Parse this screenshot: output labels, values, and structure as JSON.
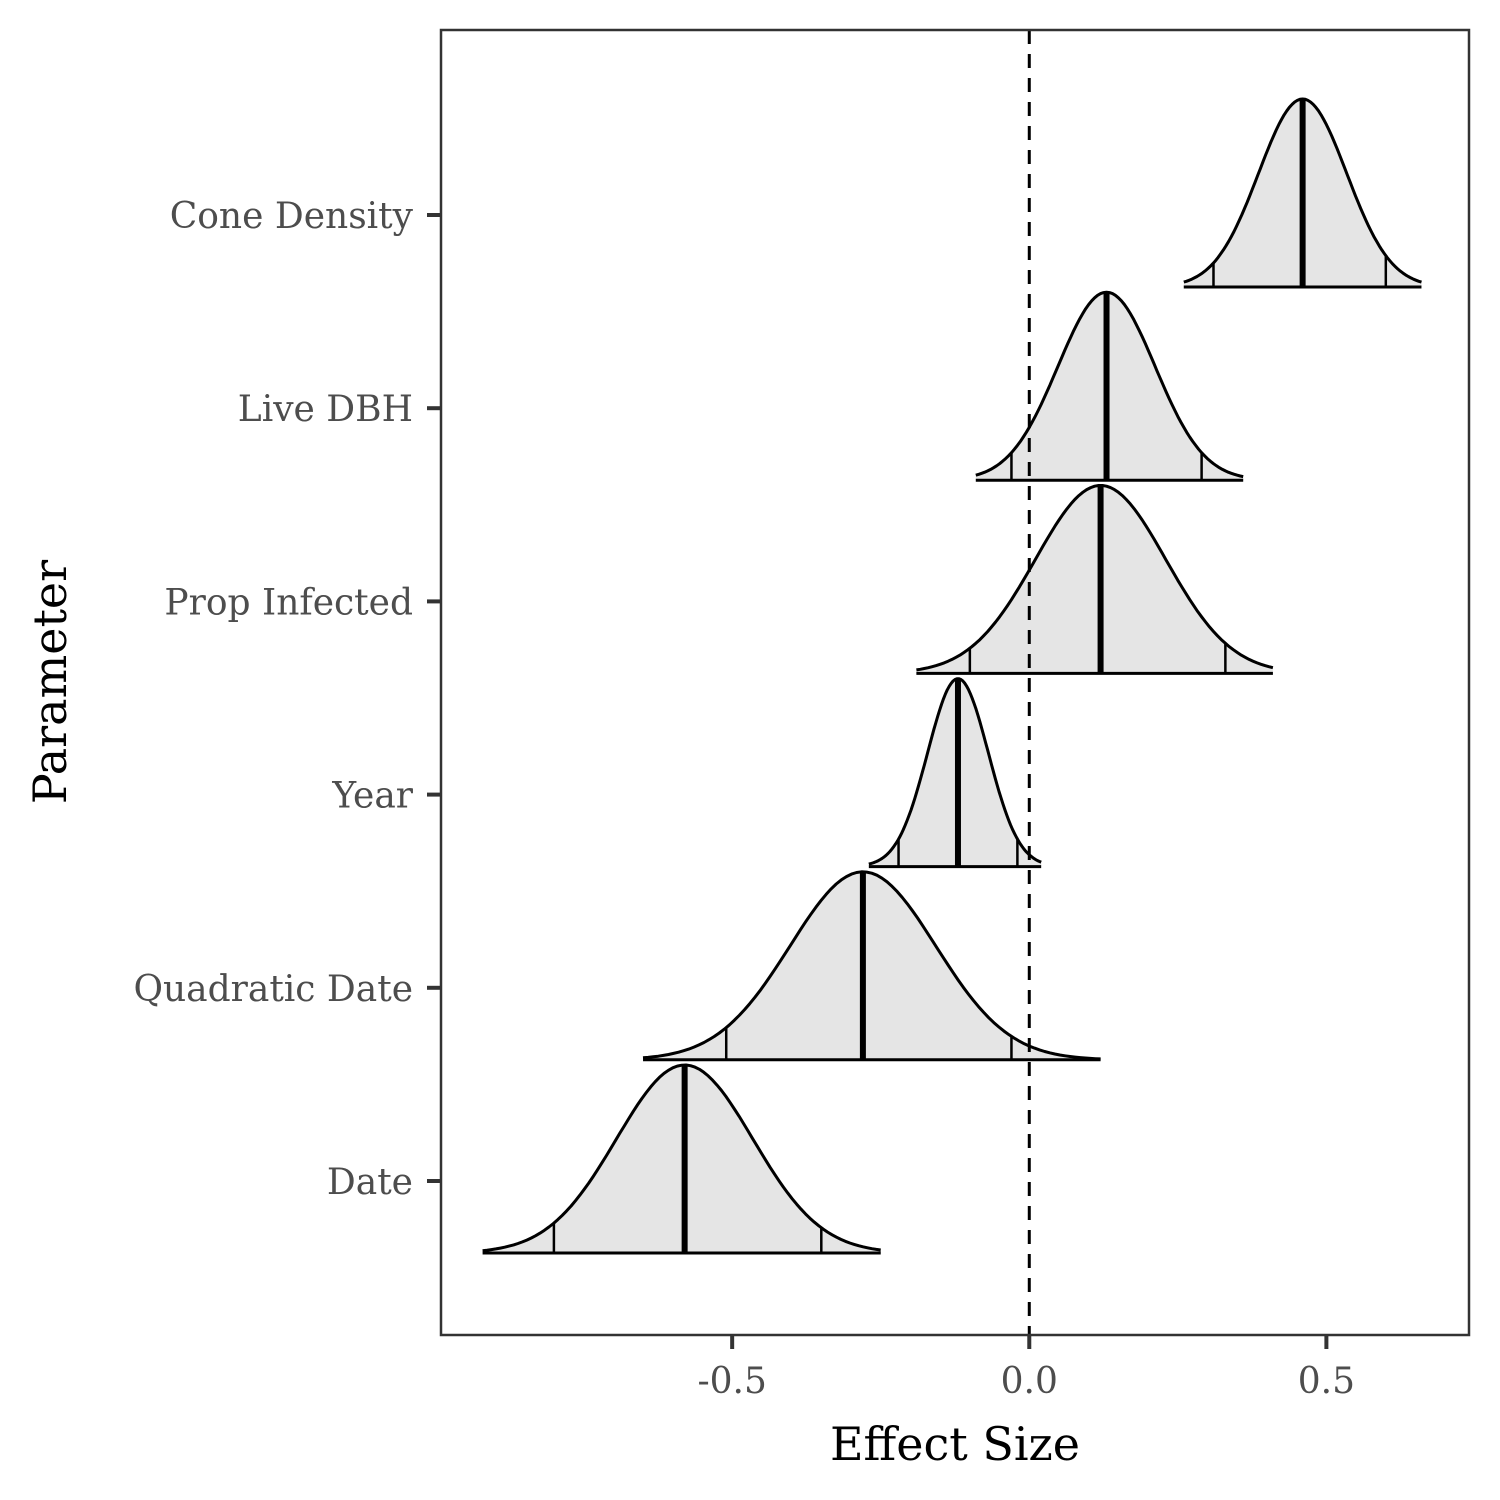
{
  "chart_data": {
    "type": "ridgeline",
    "xlabel": "Effect Size",
    "ylabel": "Parameter",
    "xlim": [
      -0.99,
      0.74
    ],
    "xticks": [
      -0.5,
      0.0,
      0.5
    ],
    "xtick_labels": [
      "-0.5",
      "0.0",
      "0.5"
    ],
    "reference_line": {
      "x": 0.0,
      "style": "dashed"
    },
    "grid": false,
    "categories": [
      "Cone Density",
      "Live DBH",
      "Prop Infected",
      "Year",
      "Quadratic Date",
      "Date"
    ],
    "series": [
      {
        "name": "Cone Density",
        "min": 0.26,
        "ci_low": 0.31,
        "median": 0.46,
        "ci_high": 0.6,
        "max": 0.66
      },
      {
        "name": "Live DBH",
        "min": -0.09,
        "ci_low": -0.03,
        "median": 0.13,
        "ci_high": 0.29,
        "max": 0.36
      },
      {
        "name": "Prop Infected",
        "min": -0.19,
        "ci_low": -0.1,
        "median": 0.12,
        "ci_high": 0.33,
        "max": 0.41
      },
      {
        "name": "Year",
        "min": -0.27,
        "ci_low": -0.22,
        "median": -0.12,
        "ci_high": -0.02,
        "max": 0.02
      },
      {
        "name": "Quadratic Date",
        "min": -0.65,
        "ci_low": -0.51,
        "median": -0.28,
        "ci_high": -0.03,
        "max": 0.12
      },
      {
        "name": "Date",
        "min": -0.92,
        "ci_low": -0.8,
        "median": -0.58,
        "ci_high": -0.35,
        "max": -0.25
      }
    ],
    "colors": {
      "fill": "#e5e5e5",
      "outline": "#000000",
      "panel_border": "#333333"
    }
  }
}
